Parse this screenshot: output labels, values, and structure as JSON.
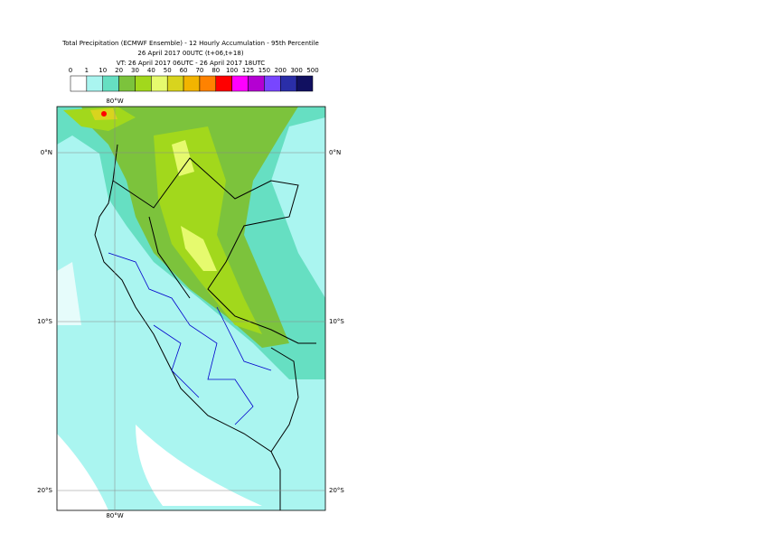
{
  "header": {
    "title_lines": [
      "Total Precipitation (ECMWF Ensemble) - 12 Hourly Accumulation - 95th Percentile",
      "26 April 2017 00UTC (t+06,t+18)",
      "VT: 26 April 2017 06UTC - 26 April 2017 18UTC"
    ]
  },
  "legend": {
    "levels": [
      0,
      1,
      10,
      20,
      30,
      40,
      50,
      60,
      70,
      80,
      100,
      125,
      150,
      200,
      300,
      500
    ],
    "colors": [
      "#ffffff",
      "#aaf5f0",
      "#66dfc2",
      "#7cc33c",
      "#a2d81c",
      "#e6fa6e",
      "#d8d41e",
      "#f2b400",
      "#ff8200",
      "#ff0000",
      "#ff00ff",
      "#b400d2",
      "#7846ff",
      "#2a2ea8",
      "#111060"
    ]
  },
  "map": {
    "lon_labels": [
      "80°W"
    ],
    "lat_labels": [
      "0°N",
      "10°S",
      "20°S"
    ]
  }
}
